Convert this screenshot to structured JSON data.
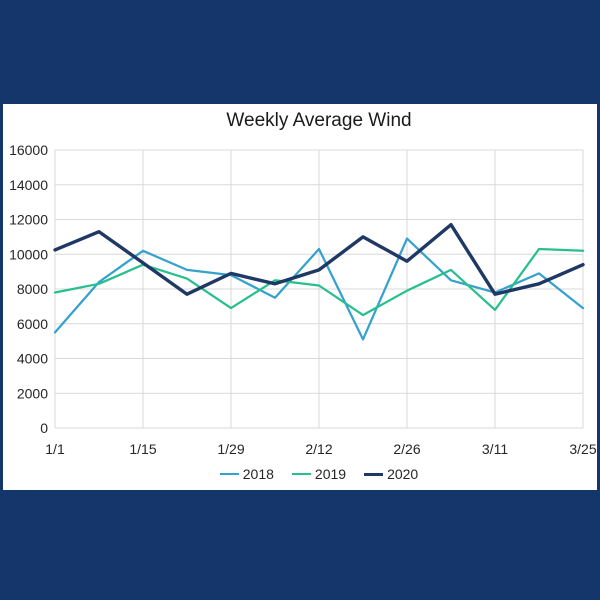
{
  "page": {
    "background_color": "#14366B",
    "panel_color": "#FFFFFF"
  },
  "chart_data": {
    "type": "line",
    "title": "Weekly Average Wind",
    "x": [
      "1/1",
      "1/8",
      "1/15",
      "1/22",
      "1/29",
      "2/5",
      "2/12",
      "2/19",
      "2/26",
      "3/4",
      "3/11",
      "3/18",
      "3/25"
    ],
    "x_tick_labels": [
      "1/1",
      "1/15",
      "1/29",
      "2/12",
      "2/26",
      "3/11",
      "3/25"
    ],
    "ylim": [
      0,
      16000
    ],
    "ytick_step": 2000,
    "ytick_labels": [
      "0",
      "2000",
      "4000",
      "6000",
      "8000",
      "10000",
      "12000",
      "14000",
      "16000"
    ],
    "grid": true,
    "gridline_color": "#D9D9D9",
    "axis_label_color": "#262626",
    "legend_position": "bottom",
    "series": [
      {
        "name": "2018",
        "color": "#35A2CE",
        "stroke_width": 2.25,
        "values": [
          5500,
          8400,
          10200,
          9100,
          8800,
          7500,
          10300,
          5100,
          10900,
          8500,
          7800,
          8900,
          6900
        ]
      },
      {
        "name": "2019",
        "color": "#28BF8E",
        "stroke_width": 2.25,
        "values": [
          7800,
          8300,
          9400,
          8600,
          6900,
          8500,
          8200,
          6500,
          7900,
          9100,
          6800,
          10300,
          10200
        ]
      },
      {
        "name": "2020",
        "color": "#1F3864",
        "stroke_width": 3.4,
        "values": [
          10250,
          11300,
          9500,
          7700,
          8900,
          8300,
          9100,
          11000,
          9600,
          11700,
          7700,
          8300,
          9400
        ]
      }
    ]
  }
}
